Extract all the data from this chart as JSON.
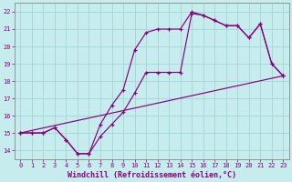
{
  "xlabel": "Windchill (Refroidissement éolien,°C)",
  "xlim": [
    -0.5,
    23.5
  ],
  "ylim": [
    13.5,
    22.5
  ],
  "xticks": [
    0,
    1,
    2,
    3,
    4,
    5,
    6,
    7,
    8,
    9,
    10,
    11,
    12,
    13,
    14,
    15,
    16,
    17,
    18,
    19,
    20,
    21,
    22,
    23
  ],
  "yticks": [
    14,
    15,
    16,
    17,
    18,
    19,
    20,
    21,
    22
  ],
  "bg_color": "#c6ecee",
  "grid_color": "#a8d8da",
  "line_color": "#880077",
  "line1_x": [
    0,
    1,
    2,
    3,
    4,
    5,
    6,
    7,
    8,
    9,
    10,
    11,
    12,
    13,
    14,
    15,
    16,
    17,
    18,
    19,
    20,
    21,
    22,
    23
  ],
  "line1_y": [
    15.0,
    15.0,
    15.0,
    15.3,
    14.6,
    13.8,
    13.8,
    14.8,
    15.5,
    16.2,
    17.3,
    18.5,
    18.5,
    18.5,
    18.5,
    21.9,
    21.8,
    21.5,
    21.2,
    21.2,
    20.5,
    21.3,
    19.0,
    18.3
  ],
  "line2_x": [
    0,
    1,
    2,
    3,
    4,
    5,
    6,
    7,
    8,
    9,
    10,
    11,
    12,
    13,
    14,
    15,
    16,
    17,
    18,
    19,
    20,
    21,
    22,
    23
  ],
  "line2_y": [
    15.0,
    15.0,
    15.0,
    15.3,
    14.6,
    13.8,
    13.8,
    15.5,
    16.6,
    17.5,
    19.8,
    20.8,
    21.0,
    21.0,
    21.0,
    22.0,
    21.8,
    21.5,
    21.2,
    21.2,
    20.5,
    21.3,
    19.0,
    18.3
  ],
  "line3_x": [
    0,
    23
  ],
  "line3_y": [
    15.0,
    18.3
  ],
  "font_size_axis": 6.0,
  "font_size_tick": 5.0
}
